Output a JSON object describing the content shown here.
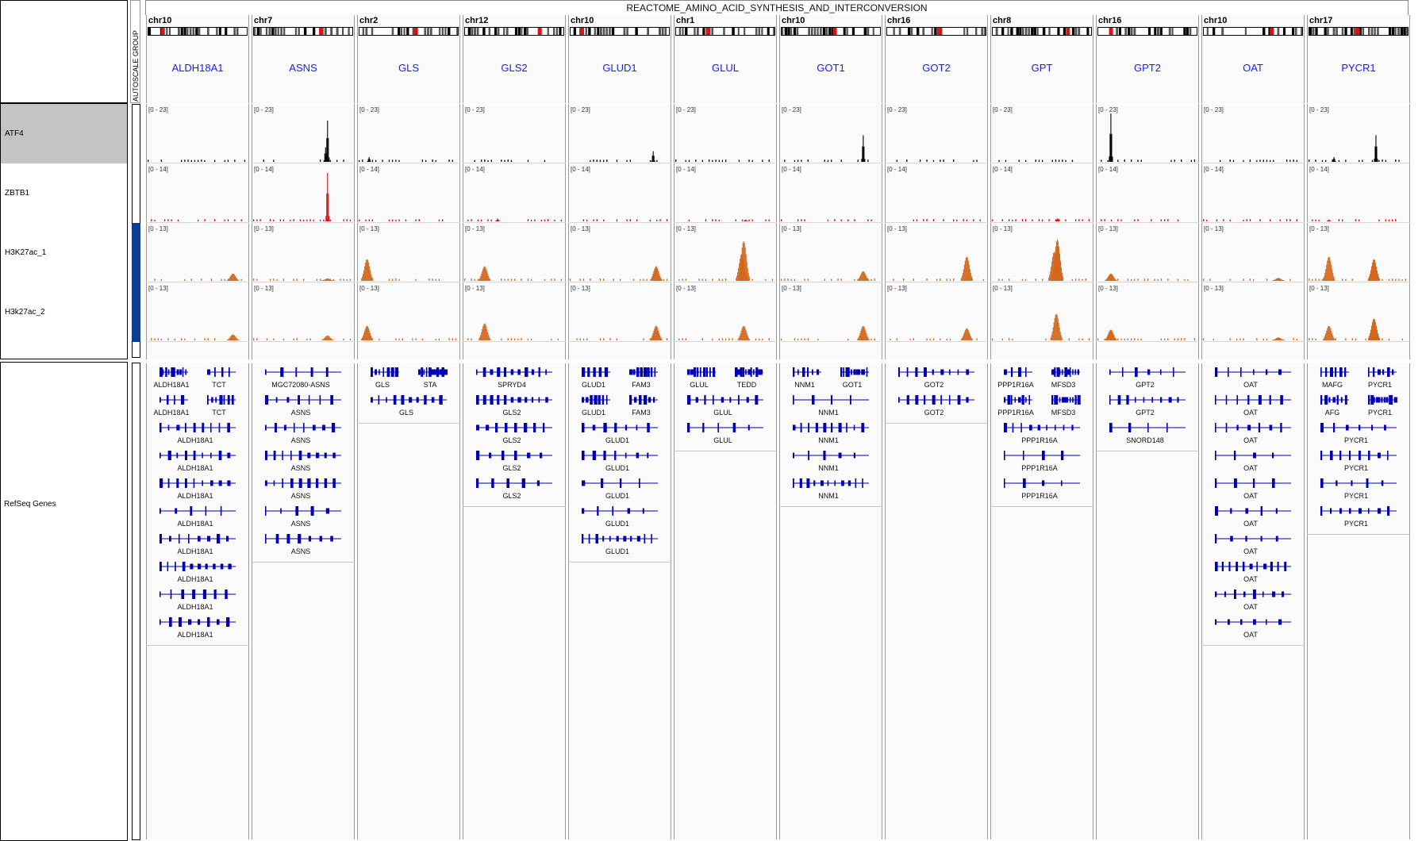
{
  "title": "REACTOME_AMINO_ACID_SYNTHESIS_AND_INTERCONVERSION",
  "attribute_header": "AUTOSCALE GROUP",
  "tracks": [
    {
      "name": "ATF4",
      "range": "[0 - 23]",
      "color": "#000000",
      "selected": true
    },
    {
      "name": "ZBTB1",
      "range": "[0 - 14]",
      "color": "#d01010",
      "selected": false
    },
    {
      "name": "H3K27ac_1",
      "range": "[0 - 13]",
      "color": "#d2691e",
      "selected": false
    },
    {
      "name": "H3k27ac_2",
      "range": "[0 - 13]",
      "color": "#d2691e",
      "selected": false
    }
  ],
  "gene_track_name": "RefSeq Genes",
  "colors": {
    "gene": "#0000b3",
    "gene_name_link": "#1a1aff",
    "autoscale_group": "#0b3d91",
    "centromere": "#e01010"
  },
  "loci": [
    {
      "chr": "chr10",
      "gene": "ALDH18A1",
      "peaks": [
        [],
        [],
        [
          [
            0.85,
            0.15
          ]
        ],
        [
          [
            0.85,
            0.12
          ]
        ]
      ],
      "rows": [
        [
          "ALDH18A1",
          "TCT"
        ],
        [
          "ALDH18A1",
          "TCT"
        ],
        [
          "ALDH18A1"
        ],
        [
          "ALDH18A1"
        ],
        [
          "ALDH18A1"
        ],
        [
          "ALDH18A1"
        ],
        [
          "ALDH18A1"
        ],
        [
          "ALDH18A1"
        ],
        [
          "ALDH18A1"
        ],
        [
          "ALDH18A1"
        ]
      ]
    },
    {
      "chr": "chr7",
      "gene": "ASNS",
      "peaks": [
        [
          [
            0.74,
            0.85
          ],
          [
            0.72,
            0.3
          ]
        ],
        [
          [
            0.74,
            1.0
          ]
        ],
        [
          [
            0.74,
            0.05
          ]
        ],
        [
          [
            0.74,
            0.1
          ]
        ]
      ],
      "rows": [
        [
          "MGC72080-ASNS"
        ],
        [
          "ASNS"
        ],
        [
          "ASNS"
        ],
        [
          "ASNS"
        ],
        [
          "ASNS"
        ],
        [
          "ASNS"
        ],
        [
          "ASNS"
        ]
      ]
    },
    {
      "chr": "chr2",
      "gene": "GLS",
      "peaks": [
        [
          [
            0.1,
            0.1
          ]
        ],
        [],
        [
          [
            0.08,
            0.45
          ]
        ],
        [
          [
            0.08,
            0.3
          ]
        ]
      ],
      "rows": [
        [
          "GLS",
          "STA"
        ],
        [
          "GLS"
        ]
      ]
    },
    {
      "chr": "chr12",
      "gene": "GLS2",
      "peaks": [
        [],
        [
          [
            0.33,
            0.06
          ]
        ],
        [
          [
            0.2,
            0.3
          ]
        ],
        [
          [
            0.2,
            0.35
          ]
        ]
      ],
      "rows": [
        [
          "SPRYD4"
        ],
        [
          "GLS2"
        ],
        [
          "GLS2"
        ],
        [
          "GLS2"
        ],
        [
          "GLS2"
        ]
      ]
    },
    {
      "chr": "chr10",
      "gene": "GLUD1",
      "peaks": [
        [
          [
            0.83,
            0.22
          ]
        ],
        [],
        [
          [
            0.86,
            0.3
          ]
        ],
        [
          [
            0.86,
            0.3
          ]
        ]
      ],
      "rows": [
        [
          "GLUD1",
          "FAM3"
        ],
        [
          "GLUD1",
          "FAM3"
        ],
        [
          "GLUD1"
        ],
        [
          "GLUD1"
        ],
        [
          "GLUD1"
        ],
        [
          "GLUD1"
        ],
        [
          "GLUD1"
        ]
      ]
    },
    {
      "chr": "chr1",
      "gene": "GLUL",
      "peaks": [
        [],
        [
          [
            0.7,
            0.04
          ]
        ],
        [
          [
            0.68,
            0.82
          ],
          [
            0.66,
            0.55
          ]
        ],
        [
          [
            0.68,
            0.3
          ]
        ]
      ],
      "rows": [
        [
          "GLUL",
          "TEDD"
        ],
        [
          "GLUL"
        ],
        [
          "GLUL"
        ]
      ]
    },
    {
      "chr": "chr10",
      "gene": "GOT1",
      "peaks": [
        [
          [
            0.82,
            0.55
          ]
        ],
        [],
        [
          [
            0.82,
            0.2
          ]
        ],
        [
          [
            0.82,
            0.3
          ]
        ]
      ],
      "rows": [
        [
          "NNM1",
          "GOT1"
        ],
        [
          "NNM1"
        ],
        [
          "NNM1"
        ],
        [
          "NNM1"
        ],
        [
          "NNM1"
        ]
      ]
    },
    {
      "chr": "chr16",
      "gene": "GOT2",
      "peaks": [
        [],
        [],
        [
          [
            0.8,
            0.5
          ]
        ],
        [
          [
            0.8,
            0.25
          ]
        ]
      ],
      "rows": [
        [
          "GOT2"
        ],
        [
          "GOT2"
        ]
      ]
    },
    {
      "chr": "chr8",
      "gene": "GPT",
      "peaks": [
        [],
        [
          [
            0.65,
            0.06
          ]
        ],
        [
          [
            0.65,
            0.85
          ],
          [
            0.62,
            0.6
          ]
        ],
        [
          [
            0.64,
            0.55
          ]
        ]
      ],
      "rows": [
        [
          "PPP1R16A",
          "MFSD3"
        ],
        [
          "PPP1R16A",
          "MFSD3"
        ],
        [
          "PPP1R16A"
        ],
        [
          "PPP1R16A"
        ],
        [
          "PPP1R16A"
        ]
      ]
    },
    {
      "chr": "chr16",
      "gene": "GPT2",
      "peaks": [
        [
          [
            0.13,
            1.0
          ]
        ],
        [],
        [
          [
            0.13,
            0.15
          ]
        ],
        [
          [
            0.13,
            0.22
          ]
        ]
      ],
      "rows": [
        [
          "GPT2"
        ],
        [
          "GPT2"
        ],
        [
          "SNORD148"
        ]
      ]
    },
    {
      "chr": "chr10",
      "gene": "OAT",
      "peaks": [
        [],
        [],
        [
          [
            0.75,
            0.06
          ]
        ],
        [
          [
            0.75,
            0.06
          ]
        ]
      ],
      "rows": [
        [
          "OAT"
        ],
        [
          "OAT"
        ],
        [
          "OAT"
        ],
        [
          "OAT"
        ],
        [
          "OAT"
        ],
        [
          "OAT"
        ],
        [
          "OAT"
        ],
        [
          "OAT"
        ],
        [
          "OAT"
        ],
        [
          "OAT"
        ]
      ]
    },
    {
      "chr": "chr17",
      "gene": "PYCR1",
      "peaks": [
        [
          [
            0.67,
            0.55
          ],
          [
            0.25,
            0.1
          ]
        ],
        [
          [
            0.2,
            0.04
          ]
        ],
        [
          [
            0.2,
            0.5
          ],
          [
            0.65,
            0.45
          ]
        ],
        [
          [
            0.2,
            0.3
          ],
          [
            0.65,
            0.45
          ]
        ]
      ],
      "rows": [
        [
          "MAFG",
          "PYCR1"
        ],
        [
          "AFG",
          "PYCR1"
        ],
        [
          "PYCR1"
        ],
        [
          "PYCR1"
        ],
        [
          "PYCR1"
        ],
        [
          "PYCR1"
        ]
      ]
    }
  ]
}
